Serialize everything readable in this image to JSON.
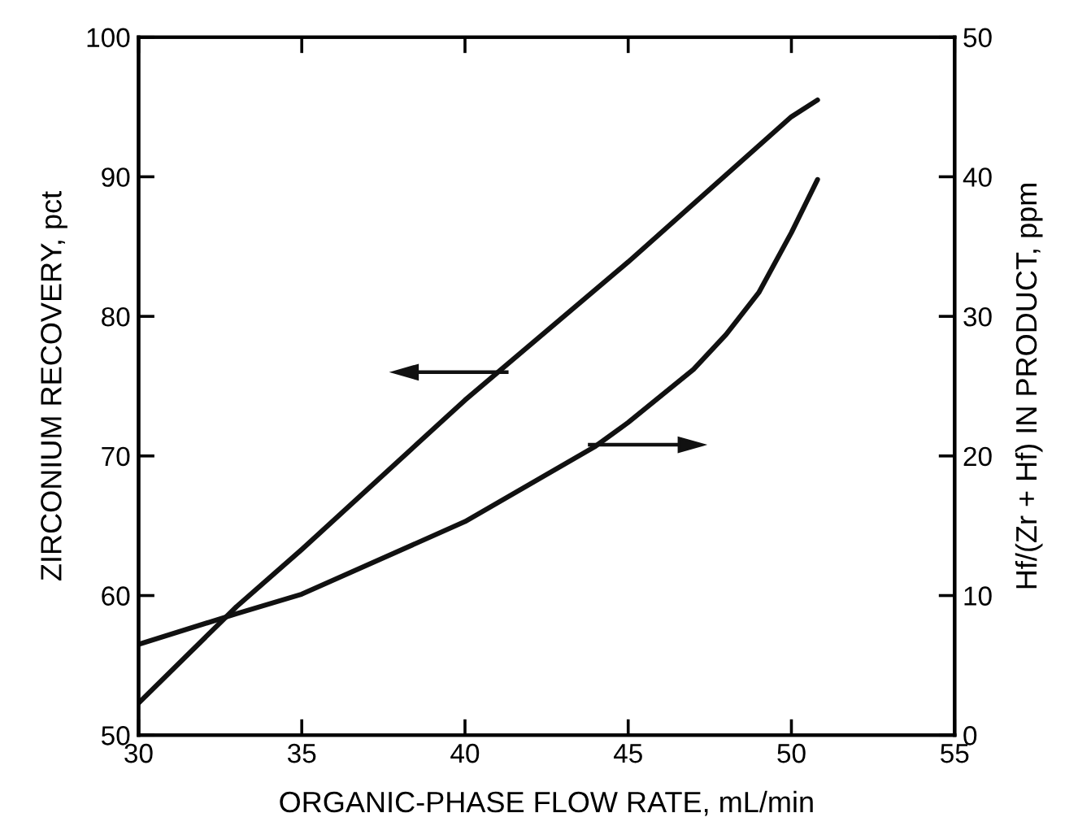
{
  "chart_data": {
    "type": "line",
    "xlabel": "ORGANIC-PHASE FLOW RATE, mL/min",
    "ylabel": "ZIRCONIUM RECOVERY, pct",
    "y2label": "Hf/(Zr + Hf) IN PRODUCT, ppm",
    "xlim": [
      30,
      55
    ],
    "xticks": [
      30,
      35,
      40,
      45,
      50,
      55
    ],
    "ylim": [
      50,
      100
    ],
    "yticks": [
      50,
      60,
      70,
      80,
      90,
      100
    ],
    "y2lim": [
      0,
      50
    ],
    "y2ticks": [
      0,
      10,
      20,
      30,
      40,
      50
    ],
    "grid": false,
    "marker": "none",
    "line_style": "solid",
    "series": [
      {
        "color": "#111111",
        "x": [
          30,
          33,
          35,
          40,
          45,
          50,
          50.8
        ],
        "values": [
          52.3,
          59.2,
          63.3,
          74.0,
          83.9,
          94.3,
          95.5
        ]
      },
      {
        "color": "#111111",
        "axis": "y2",
        "x": [
          30,
          33,
          35,
          40,
          44,
          45,
          47,
          48,
          49,
          50,
          50.8
        ],
        "values": [
          6.5,
          8.7,
          10.1,
          15.3,
          20.7,
          22.4,
          26.2,
          28.7,
          31.7,
          36.0,
          39.8
        ]
      }
    ]
  }
}
